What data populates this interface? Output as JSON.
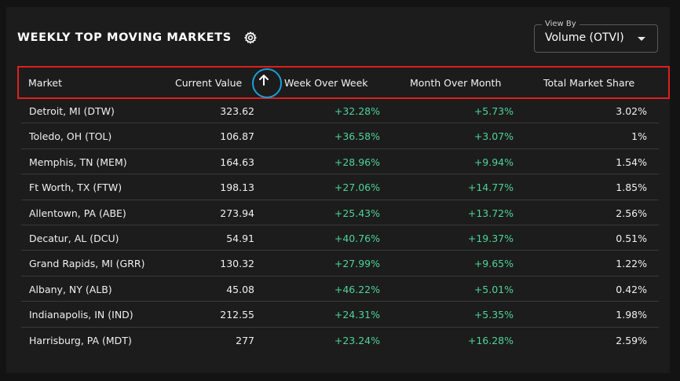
{
  "widget": {
    "title": "WEEKLY TOP MOVING MARKETS",
    "settings_icon": "gear-icon"
  },
  "view_by": {
    "label": "View By",
    "value": "Volume (OTVI)"
  },
  "table": {
    "columns": [
      "Market",
      "Current Value",
      "Week Over Week",
      "Month Over Month",
      "Total Market Share"
    ],
    "sort": {
      "column": "Current Value",
      "direction": "ascending",
      "icon": "arrow-up-icon"
    },
    "highlight_color": "#1aa0d6",
    "header_outline_color": "#e01e1e",
    "positive_color": "#4ed39a",
    "rows": [
      {
        "market": "Detroit, MI (DTW)",
        "current": "323.62",
        "wow": "+32.28%",
        "mom": "+5.73%",
        "share": "3.02%"
      },
      {
        "market": "Toledo, OH (TOL)",
        "current": "106.87",
        "wow": "+36.58%",
        "mom": "+3.07%",
        "share": "1%"
      },
      {
        "market": "Memphis, TN (MEM)",
        "current": "164.63",
        "wow": "+28.96%",
        "mom": "+9.94%",
        "share": "1.54%"
      },
      {
        "market": "Ft Worth, TX (FTW)",
        "current": "198.13",
        "wow": "+27.06%",
        "mom": "+14.77%",
        "share": "1.85%"
      },
      {
        "market": "Allentown, PA (ABE)",
        "current": "273.94",
        "wow": "+25.43%",
        "mom": "+13.72%",
        "share": "2.56%"
      },
      {
        "market": "Decatur, AL (DCU)",
        "current": "54.91",
        "wow": "+40.76%",
        "mom": "+19.37%",
        "share": "0.51%"
      },
      {
        "market": "Grand Rapids, MI (GRR)",
        "current": "130.32",
        "wow": "+27.99%",
        "mom": "+9.65%",
        "share": "1.22%"
      },
      {
        "market": "Albany, NY (ALB)",
        "current": "45.08",
        "wow": "+46.22%",
        "mom": "+5.01%",
        "share": "0.42%"
      },
      {
        "market": "Indianapolis, IN (IND)",
        "current": "212.55",
        "wow": "+24.31%",
        "mom": "+5.35%",
        "share": "1.98%"
      },
      {
        "market": "Harrisburg, PA (MDT)",
        "current": "277",
        "wow": "+23.24%",
        "mom": "+16.28%",
        "share": "2.59%"
      }
    ]
  }
}
